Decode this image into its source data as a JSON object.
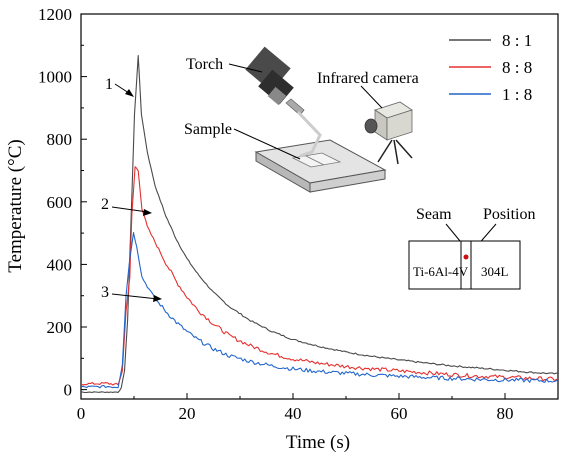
{
  "colors": {
    "series_8_1": "#4a4a4a",
    "series_8_8": "#e53030",
    "series_1_8": "#2266cc",
    "marker": "#d01010"
  },
  "chart_data": {
    "type": "line",
    "xlabel": "Time (s)",
    "ylabel": "Temperature (°C)",
    "xlim": [
      0,
      90
    ],
    "ylim": [
      -30,
      1200
    ],
    "xticks": [
      0,
      20,
      40,
      60,
      80
    ],
    "yticks": [
      0,
      200,
      400,
      600,
      800,
      1000,
      1200
    ],
    "legend_position": "top-right",
    "series": [
      {
        "name": "8 : 1",
        "label": "1",
        "color_key": "series_8_1",
        "points": [
          [
            0,
            -8
          ],
          [
            7,
            -8
          ],
          [
            7.6,
            5
          ],
          [
            8.2,
            60
          ],
          [
            8.8,
            220
          ],
          [
            9.4,
            520
          ],
          [
            10.1,
            880
          ],
          [
            10.8,
            1068
          ],
          [
            11.4,
            880
          ],
          [
            12.5,
            760
          ],
          [
            14,
            650
          ],
          [
            16,
            555
          ],
          [
            18,
            480
          ],
          [
            20,
            418
          ],
          [
            22,
            370
          ],
          [
            25,
            310
          ],
          [
            28,
            265
          ],
          [
            32,
            220
          ],
          [
            36,
            186
          ],
          [
            40,
            160
          ],
          [
            45,
            138
          ],
          [
            50,
            120
          ],
          [
            55,
            106
          ],
          [
            60,
            95
          ],
          [
            65,
            85
          ],
          [
            70,
            76
          ],
          [
            75,
            69
          ],
          [
            80,
            62
          ],
          [
            85,
            55
          ],
          [
            90,
            50
          ]
        ]
      },
      {
        "name": "8 : 8",
        "label": "2",
        "color_key": "series_8_8",
        "points": [
          [
            0,
            18
          ],
          [
            5,
            20
          ],
          [
            7,
            15
          ],
          [
            7.8,
            60
          ],
          [
            8.5,
            250
          ],
          [
            9.2,
            360
          ],
          [
            9.6,
            560
          ],
          [
            10.2,
            712
          ],
          [
            10.8,
            700
          ],
          [
            11.5,
            580
          ],
          [
            12.5,
            520
          ],
          [
            14,
            470
          ],
          [
            16,
            405
          ],
          [
            18,
            345
          ],
          [
            20,
            296
          ],
          [
            22,
            255
          ],
          [
            25,
            210
          ],
          [
            28,
            172
          ],
          [
            32,
            140
          ],
          [
            36,
            115
          ],
          [
            40,
            98
          ],
          [
            45,
            84
          ],
          [
            50,
            74
          ],
          [
            55,
            66
          ],
          [
            60,
            60
          ],
          [
            65,
            54
          ],
          [
            70,
            48
          ],
          [
            75,
            43
          ],
          [
            80,
            40
          ],
          [
            85,
            36
          ],
          [
            90,
            33
          ]
        ]
      },
      {
        "name": "1 : 8",
        "label": "3",
        "color_key": "series_1_8",
        "points": [
          [
            0,
            8
          ],
          [
            5,
            10
          ],
          [
            7,
            8
          ],
          [
            7.8,
            80
          ],
          [
            8.5,
            300
          ],
          [
            9.2,
            420
          ],
          [
            9.9,
            500
          ],
          [
            10.5,
            460
          ],
          [
            11.5,
            360
          ],
          [
            12.5,
            330
          ],
          [
            14,
            290
          ],
          [
            16,
            250
          ],
          [
            18,
            215
          ],
          [
            20,
            185
          ],
          [
            22,
            160
          ],
          [
            25,
            130
          ],
          [
            28,
            108
          ],
          [
            32,
            90
          ],
          [
            36,
            76
          ],
          [
            40,
            66
          ],
          [
            45,
            58
          ],
          [
            50,
            52
          ],
          [
            55,
            47
          ],
          [
            60,
            43
          ],
          [
            65,
            39
          ],
          [
            70,
            36
          ],
          [
            75,
            33
          ],
          [
            80,
            31
          ],
          [
            85,
            29
          ],
          [
            90,
            28
          ]
        ]
      }
    ],
    "inset": {
      "torch_label": "Torch",
      "camera_label": "Infrared camera",
      "sample_label": "Sample",
      "seam_label": "Seam",
      "position_label": "Position",
      "left_material": "Ti-6Al-4V",
      "right_material": "304L"
    }
  }
}
